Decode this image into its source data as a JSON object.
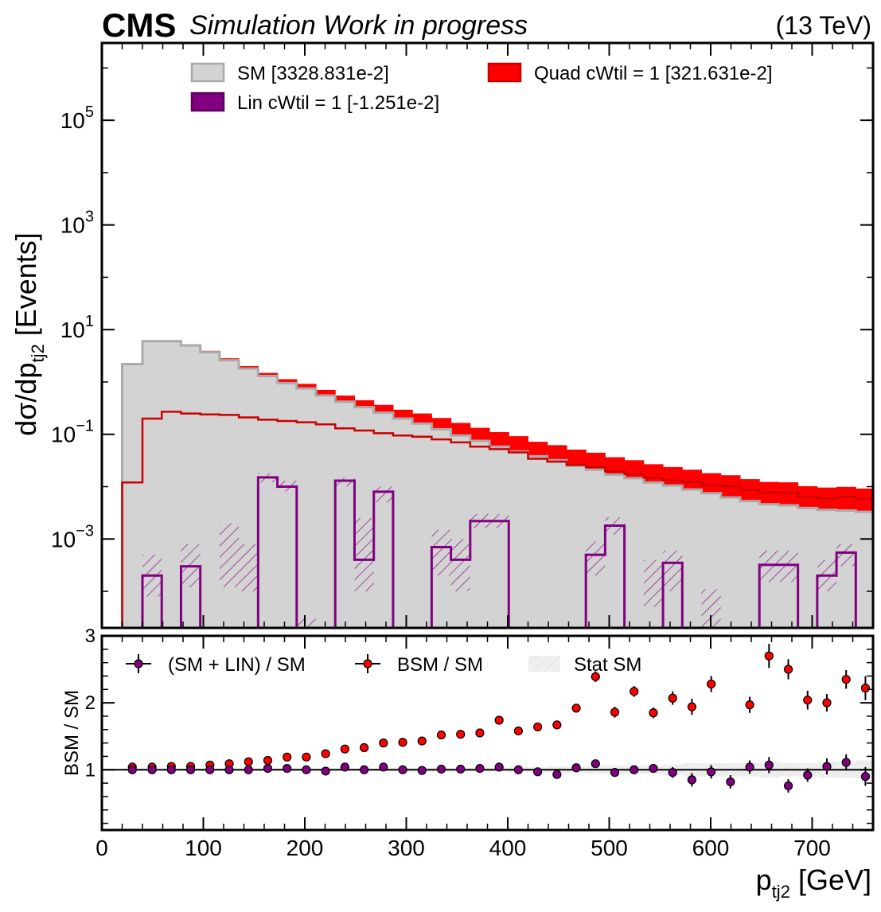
{
  "header": {
    "brand": "CMS",
    "status": "Simulation Work in progress",
    "energy": "(13 TeV)"
  },
  "top_panel": {
    "ylabel": "dσ/dp",
    "ylabel_sub": "tj2",
    "ylabel_unit": "[Events]",
    "yticks": [
      {
        "base": "10",
        "exp": "5",
        "value": 100000
      },
      {
        "base": "10",
        "exp": "3",
        "value": 1000
      },
      {
        "base": "10",
        "exp": "1",
        "value": 10
      },
      {
        "base": "10",
        "exp": "−1",
        "value": 0.1
      },
      {
        "base": "10",
        "exp": "−3",
        "value": 0.001
      }
    ],
    "legend": [
      {
        "label": "SM [3328.831e-2]",
        "color": "#d3d3d3",
        "edge": "#a9a9a9"
      },
      {
        "label": "Quad cWtil = 1 [321.631e-2]",
        "color": "#ff0000",
        "edge": "#cc0000"
      },
      {
        "label": "Lin cWtil = 1 [-1.251e-2]",
        "color": "#800080",
        "edge": "#5a005a"
      }
    ]
  },
  "ratio_panel": {
    "ylabel": "BSM / SM",
    "yticks": [
      "1",
      "2",
      "3"
    ],
    "legend": [
      {
        "label": "(SM + LIN) / SM",
        "color": "#800080"
      },
      {
        "label": "BSM / SM",
        "color": "#ff0000"
      },
      {
        "label": "Stat SM",
        "color": "#e6e6e6"
      }
    ]
  },
  "xaxis": {
    "label": "p",
    "label_sub": "tj2",
    "label_unit": "[GeV]",
    "ticks": [
      "0",
      "100",
      "200",
      "300",
      "400",
      "500",
      "600",
      "700"
    ]
  },
  "chart_data": {
    "type": "histogram",
    "x_range": [
      0,
      760
    ],
    "bin_edges": [
      20,
      40,
      59,
      78,
      97,
      116,
      135,
      154,
      173,
      192,
      211,
      230,
      249,
      268,
      287,
      306,
      325,
      344,
      363,
      382,
      401,
      420,
      439,
      458,
      477,
      496,
      515,
      534,
      553,
      572,
      591,
      610,
      629,
      648,
      667,
      686,
      705,
      724,
      743,
      762
    ],
    "top_ylim": [
      2e-05,
      3000000
    ],
    "top_yscale": "log",
    "series": [
      {
        "name": "SM [3328.831e-2]",
        "role": "sm",
        "values": [
          2.2,
          6.0,
          6.0,
          5.0,
          3.7,
          2.6,
          1.8,
          1.3,
          0.95,
          0.75,
          0.55,
          0.42,
          0.33,
          0.26,
          0.2,
          0.16,
          0.125,
          0.095,
          0.075,
          0.058,
          0.047,
          0.038,
          0.032,
          0.025,
          0.021,
          0.017,
          0.0145,
          0.012,
          0.0105,
          0.0088,
          0.0075,
          0.0062,
          0.0053,
          0.0046,
          0.0044,
          0.0039,
          0.0036,
          0.0035,
          0.0033
        ]
      },
      {
        "name": "Quad cWtil = 1 [321.631e-2]",
        "role": "quad",
        "values": [
          0.012,
          0.2,
          0.27,
          0.25,
          0.24,
          0.235,
          0.21,
          0.19,
          0.18,
          0.17,
          0.155,
          0.13,
          0.118,
          0.105,
          0.095,
          0.09,
          0.08,
          0.07,
          0.058,
          0.052,
          0.045,
          0.034,
          0.03,
          0.026,
          0.0235,
          0.0195,
          0.0175,
          0.0148,
          0.0132,
          0.0123,
          0.0106,
          0.0103,
          0.0086,
          0.0077,
          0.0077,
          0.0063,
          0.006,
          0.0064,
          0.0059
        ]
      },
      {
        "name": "Lin cWtil = 1 [-1.251e-2]",
        "role": "lin",
        "values": [
          0,
          0.0002,
          0,
          0.0003,
          0,
          0,
          0,
          0.015,
          0.01,
          0,
          0,
          0.013,
          0.0004,
          0.008,
          0,
          0,
          0.0007,
          0.0004,
          0.0022,
          0.0022,
          0,
          0,
          0,
          0,
          0.0005,
          0.0018,
          0,
          0,
          0.00035,
          0,
          0,
          0,
          0,
          0.00032,
          0.00032,
          0,
          0.0002,
          0.00055,
          0
        ],
        "hatch_low": [
          0,
          8e-05,
          6e-05,
          0.00012,
          0,
          0.00012,
          0.0001,
          0.012,
          0.008,
          2e-05,
          0,
          0.01,
          0.0001,
          0.005,
          2e-05,
          0,
          0.0002,
          0.0001,
          0.0016,
          0.0016,
          0,
          0,
          0,
          0,
          0.0002,
          0.0012,
          0,
          5e-05,
          0.0001,
          0,
          1.5e-05,
          1e-05,
          0,
          0.00015,
          0.00015,
          0,
          0.0001,
          0.0003,
          0
        ],
        "hatch_high": [
          0,
          0.0005,
          0,
          0.0008,
          0,
          0.002,
          0.0008,
          0.018,
          0.013,
          3e-05,
          0,
          0.015,
          0.0025,
          0.01,
          0,
          0,
          0.0015,
          0.001,
          0.003,
          0.003,
          0,
          0,
          0,
          0,
          0.0009,
          0.0026,
          0,
          0.0004,
          0.0006,
          0,
          0.00011,
          0,
          0,
          0.0006,
          0.0006,
          0,
          0.0004,
          0.0008,
          0
        ]
      }
    ],
    "ratio_ylim": [
      0.1,
      3.0
    ],
    "ratio_points": {
      "x": [
        30,
        49.5,
        68.5,
        87.5,
        106.5,
        125.5,
        144.5,
        163.5,
        182.5,
        201.5,
        220.5,
        239.5,
        258.5,
        277.5,
        296.5,
        315.5,
        334.5,
        353.5,
        372.5,
        391.5,
        410.5,
        429.5,
        448.5,
        467.5,
        486.5,
        505.5,
        524.5,
        543.5,
        562.5,
        581.5,
        600.5,
        619.5,
        638.5,
        657.5,
        676.5,
        695.5,
        714.5,
        733.5,
        752.5
      ],
      "bsm_over_sm": [
        1.04,
        1.04,
        1.05,
        1.05,
        1.07,
        1.09,
        1.12,
        1.14,
        1.19,
        1.19,
        1.24,
        1.31,
        1.33,
        1.4,
        1.41,
        1.43,
        1.52,
        1.53,
        1.55,
        1.74,
        1.58,
        1.64,
        1.67,
        1.92,
        2.39,
        1.86,
        2.17,
        1.85,
        2.07,
        1.94,
        2.28,
        null,
        1.97,
        2.7,
        2.5,
        2.04,
        2.0,
        2.35,
        2.22
      ],
      "bsm_err": [
        0.03,
        0.03,
        0.03,
        0.03,
        0.03,
        0.03,
        0.03,
        0.03,
        0.03,
        0.03,
        0.03,
        0.03,
        0.03,
        0.03,
        0.04,
        0.04,
        0.04,
        0.04,
        0.04,
        0.05,
        0.05,
        0.05,
        0.06,
        0.06,
        0.08,
        0.08,
        0.08,
        0.08,
        0.1,
        0.12,
        0.12,
        0,
        0.12,
        0.18,
        0.15,
        0.14,
        0.13,
        0.14,
        0.18
      ],
      "lin_over_sm": [
        1.0,
        1.0,
        1.0,
        1.0,
        1.0,
        1.0,
        1.0,
        1.02,
        1.02,
        1.0,
        0.98,
        1.04,
        1.0,
        1.04,
        1.0,
        0.99,
        1.01,
        1.01,
        1.02,
        1.04,
        1.0,
        0.97,
        0.93,
        1.03,
        1.09,
        0.96,
        1.0,
        1.02,
        0.96,
        0.85,
        0.97,
        0.82,
        1.04,
        1.07,
        0.76,
        0.92,
        1.05,
        1.11,
        0.9
      ],
      "lin_err": [
        0.02,
        0.02,
        0.02,
        0.02,
        0.02,
        0.02,
        0.02,
        0.02,
        0.02,
        0.02,
        0.02,
        0.02,
        0.02,
        0.02,
        0.03,
        0.03,
        0.03,
        0.03,
        0.03,
        0.03,
        0.04,
        0.04,
        0.05,
        0.05,
        0.06,
        0.06,
        0.06,
        0.06,
        0.08,
        0.1,
        0.1,
        0.1,
        0.1,
        0.12,
        0.1,
        0.1,
        0.12,
        0.12,
        0.14
      ]
    }
  },
  "colors": {
    "sm_fill": "#d3d3d3",
    "sm_edge": "#a9a9a9",
    "quad": "#ff0000",
    "quad_line": "#cc0000",
    "lin": "#800080",
    "stat_band": "#e8e8e8"
  }
}
